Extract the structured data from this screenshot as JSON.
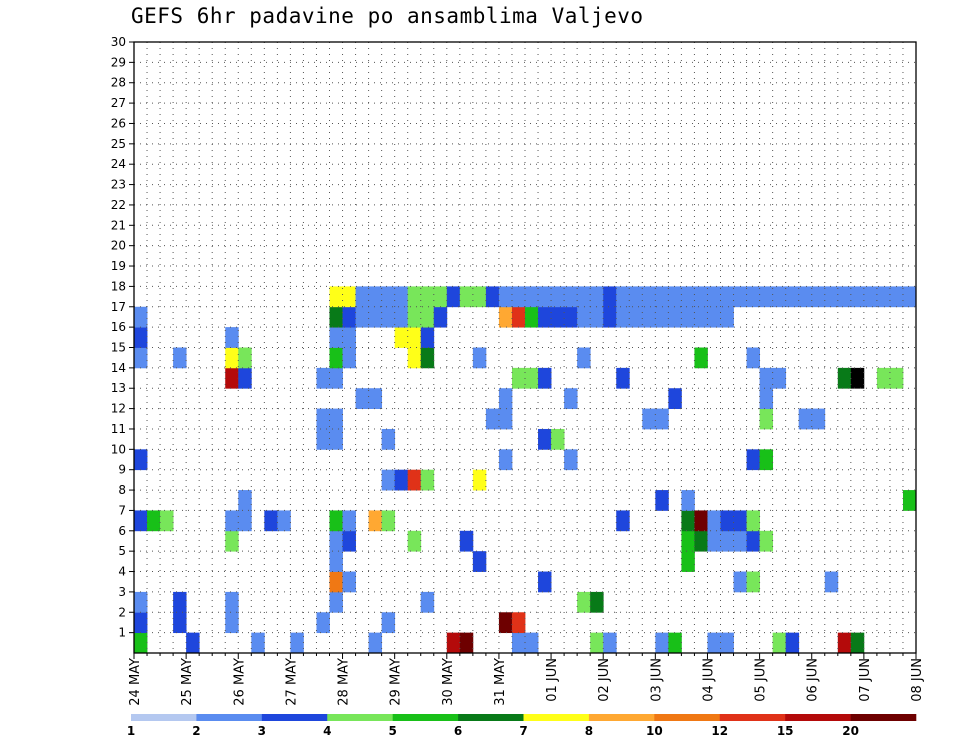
{
  "chart_data": {
    "type": "heatmap",
    "title": "GEFS 6hr padavine po ansamblima Valjevo",
    "x_labels": [
      "24 MAY",
      "25 MAY",
      "26 MAY",
      "27 MAY",
      "28 MAY",
      "29 MAY",
      "30 MAY",
      "31 MAY",
      "01 JUN",
      "02 JUN",
      "03 JUN",
      "04 JUN",
      "05 JUN",
      "06 JUN",
      "07 JUN",
      "08 JUN"
    ],
    "x_steps": 60,
    "y_labels": [
      "1",
      "2",
      "3",
      "4",
      "5",
      "6",
      "7",
      "8",
      "9",
      "10",
      "11",
      "12",
      "13",
      "14",
      "15",
      "16",
      "17",
      "18",
      "19",
      "20",
      "21",
      "22",
      "23",
      "24",
      "25",
      "26",
      "27",
      "28",
      "29",
      "30"
    ],
    "ylim": [
      0,
      30
    ],
    "grid": true,
    "colorbar": {
      "labels": [
        "1",
        "2",
        "3",
        "4",
        "5",
        "6",
        "7",
        "8",
        "10",
        "12",
        "15",
        "20"
      ],
      "colors": [
        "#b4c8f0",
        "#5a8cf0",
        "#1e46dc",
        "#78e65a",
        "#18c018",
        "#087a18",
        "#ffff18",
        "#ffa832",
        "#f07814",
        "#e03218",
        "#b40a0a",
        "#6e0000"
      ]
    },
    "cells": [
      [
        0,
        0,
        4
      ],
      [
        4,
        0,
        2
      ],
      [
        9,
        0,
        1
      ],
      [
        12,
        0,
        1
      ],
      [
        18,
        0,
        1
      ],
      [
        24,
        0,
        10
      ],
      [
        25,
        0,
        11
      ],
      [
        29,
        0,
        1
      ],
      [
        30,
        0,
        1
      ],
      [
        35,
        0,
        3
      ],
      [
        36,
        0,
        1
      ],
      [
        40,
        0,
        1
      ],
      [
        41,
        0,
        4
      ],
      [
        44,
        0,
        1
      ],
      [
        45,
        0,
        1
      ],
      [
        49,
        0,
        3
      ],
      [
        50,
        0,
        2
      ],
      [
        54,
        0,
        10
      ],
      [
        55,
        0,
        5
      ],
      [
        0,
        1,
        2
      ],
      [
        3,
        1,
        2
      ],
      [
        7,
        1,
        1
      ],
      [
        14,
        1,
        1
      ],
      [
        19,
        1,
        1
      ],
      [
        28,
        1,
        11
      ],
      [
        29,
        1,
        9
      ],
      [
        0,
        2,
        1
      ],
      [
        3,
        2,
        2
      ],
      [
        7,
        2,
        1
      ],
      [
        15,
        2,
        1
      ],
      [
        22,
        2,
        1
      ],
      [
        34,
        2,
        3
      ],
      [
        35,
        2,
        5
      ],
      [
        15,
        3,
        8
      ],
      [
        16,
        3,
        1
      ],
      [
        31,
        3,
        2
      ],
      [
        46,
        3,
        1
      ],
      [
        47,
        3,
        3
      ],
      [
        53,
        3,
        1
      ],
      [
        15,
        4,
        1
      ],
      [
        26,
        4,
        2
      ],
      [
        42,
        4,
        4
      ],
      [
        7,
        5,
        3
      ],
      [
        15,
        5,
        1
      ],
      [
        16,
        5,
        2
      ],
      [
        21,
        5,
        3
      ],
      [
        25,
        5,
        2
      ],
      [
        42,
        5,
        4
      ],
      [
        43,
        5,
        5
      ],
      [
        44,
        5,
        1
      ],
      [
        45,
        5,
        1
      ],
      [
        46,
        5,
        1
      ],
      [
        47,
        5,
        2
      ],
      [
        48,
        5,
        3
      ],
      [
        0,
        6,
        2
      ],
      [
        1,
        6,
        4
      ],
      [
        2,
        6,
        3
      ],
      [
        7,
        6,
        1
      ],
      [
        8,
        6,
        1
      ],
      [
        10,
        6,
        2
      ],
      [
        11,
        6,
        1
      ],
      [
        15,
        6,
        4
      ],
      [
        16,
        6,
        1
      ],
      [
        18,
        6,
        7
      ],
      [
        19,
        6,
        3
      ],
      [
        37,
        6,
        2
      ],
      [
        42,
        6,
        5
      ],
      [
        43,
        6,
        11
      ],
      [
        44,
        6,
        1
      ],
      [
        45,
        6,
        2
      ],
      [
        46,
        6,
        2
      ],
      [
        47,
        6,
        3
      ],
      [
        8,
        7,
        1
      ],
      [
        40,
        7,
        2
      ],
      [
        42,
        7,
        1
      ],
      [
        59,
        7,
        4
      ],
      [
        19,
        8,
        1
      ],
      [
        20,
        8,
        2
      ],
      [
        21,
        8,
        9
      ],
      [
        22,
        8,
        3
      ],
      [
        26,
        8,
        6
      ],
      [
        0,
        9,
        2
      ],
      [
        28,
        9,
        1
      ],
      [
        33,
        9,
        1
      ],
      [
        47,
        9,
        2
      ],
      [
        48,
        9,
        4
      ],
      [
        14,
        10,
        1
      ],
      [
        15,
        10,
        1
      ],
      [
        19,
        10,
        1
      ],
      [
        31,
        10,
        2
      ],
      [
        32,
        10,
        3
      ],
      [
        14,
        11,
        1
      ],
      [
        15,
        11,
        1
      ],
      [
        27,
        11,
        1
      ],
      [
        28,
        11,
        1
      ],
      [
        39,
        11,
        1
      ],
      [
        40,
        11,
        1
      ],
      [
        48,
        11,
        3
      ],
      [
        51,
        11,
        1
      ],
      [
        52,
        11,
        1
      ],
      [
        17,
        12,
        1
      ],
      [
        18,
        12,
        1
      ],
      [
        28,
        12,
        1
      ],
      [
        33,
        12,
        1
      ],
      [
        41,
        12,
        2
      ],
      [
        48,
        12,
        1
      ],
      [
        7,
        13,
        10
      ],
      [
        8,
        13,
        2
      ],
      [
        14,
        13,
        1
      ],
      [
        15,
        13,
        1
      ],
      [
        29,
        13,
        3
      ],
      [
        30,
        13,
        3
      ],
      [
        31,
        13,
        2
      ],
      [
        37,
        13,
        2
      ],
      [
        48,
        13,
        1
      ],
      [
        49,
        13,
        1
      ],
      [
        54,
        13,
        5
      ],
      [
        55,
        13,
        12
      ],
      [
        57,
        13,
        3
      ],
      [
        58,
        13,
        3
      ],
      [
        0,
        14,
        1
      ],
      [
        3,
        14,
        1
      ],
      [
        7,
        14,
        6
      ],
      [
        8,
        14,
        3
      ],
      [
        15,
        14,
        4
      ],
      [
        16,
        14,
        1
      ],
      [
        21,
        14,
        6
      ],
      [
        22,
        14,
        5
      ],
      [
        26,
        14,
        1
      ],
      [
        34,
        14,
        1
      ],
      [
        43,
        14,
        4
      ],
      [
        47,
        14,
        1
      ],
      [
        0,
        15,
        2
      ],
      [
        7,
        15,
        1
      ],
      [
        15,
        15,
        1
      ],
      [
        16,
        15,
        1
      ],
      [
        20,
        15,
        6
      ],
      [
        21,
        15,
        6
      ],
      [
        22,
        15,
        2
      ],
      [
        0,
        16,
        1
      ],
      [
        15,
        16,
        5
      ],
      [
        16,
        16,
        2
      ],
      [
        17,
        16,
        1
      ],
      [
        18,
        16,
        1
      ],
      [
        19,
        16,
        1
      ],
      [
        20,
        16,
        1
      ],
      [
        21,
        16,
        3
      ],
      [
        22,
        16,
        3
      ],
      [
        23,
        16,
        2
      ],
      [
        28,
        16,
        7
      ],
      [
        29,
        16,
        9
      ],
      [
        30,
        16,
        4
      ],
      [
        31,
        16,
        2
      ],
      [
        32,
        16,
        2
      ],
      [
        33,
        16,
        2
      ],
      [
        34,
        16,
        1
      ],
      [
        35,
        16,
        1
      ],
      [
        36,
        16,
        2
      ],
      [
        37,
        16,
        1
      ],
      [
        38,
        16,
        1
      ],
      [
        39,
        16,
        1
      ],
      [
        40,
        16,
        1
      ],
      [
        41,
        16,
        1
      ],
      [
        42,
        16,
        1
      ],
      [
        43,
        16,
        1
      ],
      [
        44,
        16,
        1
      ],
      [
        45,
        16,
        1
      ],
      [
        15,
        17,
        6
      ],
      [
        16,
        17,
        6
      ],
      [
        17,
        17,
        1
      ],
      [
        18,
        17,
        1
      ],
      [
        19,
        17,
        1
      ],
      [
        20,
        17,
        1
      ],
      [
        21,
        17,
        3
      ],
      [
        22,
        17,
        3
      ],
      [
        23,
        17,
        3
      ],
      [
        24,
        17,
        2
      ],
      [
        25,
        17,
        3
      ],
      [
        26,
        17,
        3
      ],
      [
        27,
        17,
        2
      ],
      [
        28,
        17,
        1
      ],
      [
        29,
        17,
        1
      ],
      [
        30,
        17,
        1
      ],
      [
        31,
        17,
        1
      ],
      [
        32,
        17,
        1
      ],
      [
        33,
        17,
        1
      ],
      [
        34,
        17,
        1
      ],
      [
        35,
        17,
        1
      ],
      [
        36,
        17,
        2
      ],
      [
        37,
        17,
        1
      ],
      [
        38,
        17,
        1
      ],
      [
        39,
        17,
        1
      ],
      [
        40,
        17,
        1
      ],
      [
        41,
        17,
        1
      ],
      [
        42,
        17,
        1
      ],
      [
        43,
        17,
        1
      ],
      [
        44,
        17,
        1
      ],
      [
        45,
        17,
        1
      ],
      [
        46,
        17,
        1
      ],
      [
        47,
        17,
        1
      ],
      [
        48,
        17,
        1
      ],
      [
        49,
        17,
        1
      ],
      [
        50,
        17,
        1
      ],
      [
        51,
        17,
        1
      ],
      [
        52,
        17,
        1
      ],
      [
        53,
        17,
        1
      ],
      [
        54,
        17,
        1
      ],
      [
        55,
        17,
        1
      ],
      [
        56,
        17,
        1
      ],
      [
        57,
        17,
        1
      ],
      [
        58,
        17,
        1
      ],
      [
        59,
        17,
        1
      ]
    ]
  }
}
